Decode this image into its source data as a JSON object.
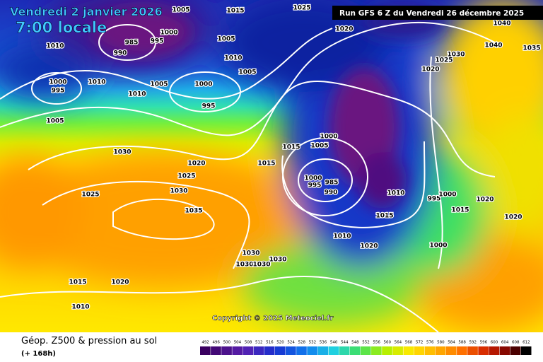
{
  "header": {
    "date": "Vendredi 2 janvier 2026",
    "time": "7:00 locale",
    "run": "Run GFS 6 Z du Vendredi 26 décembre 2025"
  },
  "copyright": "Copyright © 2025 Meteociel.fr",
  "footer": {
    "title": "Géop. Z500 & pression au sol",
    "lead": "(+ 168h)"
  },
  "isobar_labels": [
    1010,
    990,
    985,
    995,
    1000,
    1005,
    1015,
    1025,
    1020,
    1040,
    1035,
    1040,
    1030,
    1025,
    1020,
    1005,
    1010,
    1005,
    1000,
    995,
    1010,
    1010,
    1005,
    1000,
    995,
    1005,
    1030,
    1020,
    1025,
    1025,
    1030,
    1035,
    1015,
    1015,
    1000,
    1005,
    1000,
    995,
    985,
    990,
    1010,
    995,
    1000,
    1015,
    1020,
    1020,
    1015,
    1010,
    1020,
    1000,
    1030,
    1030,
    1030,
    1030,
    1015,
    1020,
    1010
  ],
  "scale": [
    492,
    496,
    500,
    504,
    508,
    512,
    516,
    520,
    524,
    528,
    532,
    536,
    540,
    544,
    548,
    552,
    556,
    560,
    564,
    568,
    572,
    576,
    580,
    584,
    588,
    592,
    596,
    600,
    604,
    608,
    612
  ]
}
